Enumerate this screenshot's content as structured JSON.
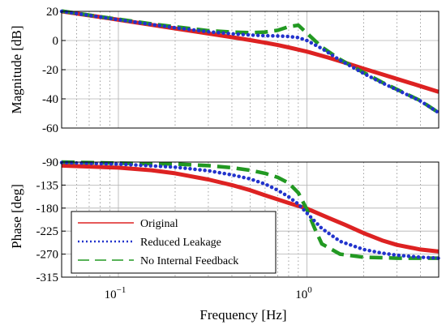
{
  "chart_data": [
    {
      "type": "line",
      "panel": "magnitude",
      "ylabel": "Magnitude [dB]",
      "xlim": [
        0.05,
        5
      ],
      "xscale": "log",
      "ylim": [
        -60,
        20
      ],
      "yticks": [
        20,
        0,
        -20,
        -40,
        -60
      ],
      "ytick_labels": [
        "20",
        "0",
        "-20",
        "-40",
        "-60"
      ],
      "grid": true,
      "series": [
        {
          "name": "Original",
          "color": "#dd2222",
          "style": "solid",
          "x": [
            0.05,
            0.08,
            0.1,
            0.15,
            0.2,
            0.3,
            0.4,
            0.5,
            0.6,
            0.7,
            0.8,
            1.0,
            1.3,
            1.6,
            2.0,
            2.5,
            3.0,
            4.0,
            5.0
          ],
          "y": [
            20.0,
            16.1,
            14.2,
            10.7,
            8.3,
            4.8,
            2.3,
            0.3,
            -1.5,
            -3.1,
            -4.7,
            -7.6,
            -11.7,
            -15.3,
            -19.3,
            -23.1,
            -26.3,
            -31.3,
            -35.2
          ]
        },
        {
          "name": "Reduced Leakage",
          "color": "#2233cc",
          "style": "dotted",
          "x": [
            0.05,
            0.08,
            0.1,
            0.15,
            0.2,
            0.3,
            0.4,
            0.5,
            0.6,
            0.7,
            0.8,
            0.9,
            1.0,
            1.2,
            1.5,
            2.0,
            2.5,
            3.0,
            4.0,
            5.0
          ],
          "y": [
            20.0,
            16.1,
            14.3,
            11.0,
            8.8,
            6.0,
            4.6,
            3.8,
            3.3,
            3.1,
            2.8,
            2.0,
            0.0,
            -5.5,
            -13.5,
            -22.6,
            -29.0,
            -33.8,
            -41.5,
            -49.5
          ]
        },
        {
          "name": "No Internal Feedback",
          "color": "#229922",
          "style": "dashed",
          "x": [
            0.05,
            0.08,
            0.1,
            0.15,
            0.2,
            0.3,
            0.4,
            0.5,
            0.6,
            0.7,
            0.8,
            0.9,
            1.0,
            1.2,
            1.5,
            2.0,
            2.5,
            3.0,
            4.0,
            5.0
          ],
          "y": [
            20.2,
            16.3,
            14.6,
            11.4,
            9.4,
            6.8,
            5.8,
            5.4,
            5.8,
            7.0,
            9.5,
            10.5,
            5.0,
            -4.5,
            -13.0,
            -22.0,
            -28.6,
            -33.5,
            -41.3,
            -49.5
          ]
        }
      ]
    },
    {
      "type": "line",
      "panel": "phase",
      "xlabel": "Frequency [Hz]",
      "ylabel": "Phase [deg]",
      "xlim": [
        0.05,
        5
      ],
      "xscale": "log",
      "xticks": [
        0.1,
        1.0
      ],
      "xtick_labels": [
        {
          "base": "10",
          "exp": "−1"
        },
        {
          "base": "10",
          "exp": "0"
        }
      ],
      "ylim": [
        -315,
        -90
      ],
      "yticks": [
        -90,
        -135,
        -180,
        -225,
        -270,
        -315
      ],
      "ytick_labels": [
        "-90",
        "-135",
        "-180",
        "-225",
        "-270",
        "-315"
      ],
      "grid": true,
      "legend_position": "lower-left",
      "series": [
        {
          "name": "Original",
          "color": "#dd2222",
          "style": "solid",
          "x": [
            0.05,
            0.1,
            0.15,
            0.2,
            0.3,
            0.4,
            0.5,
            0.6,
            0.8,
            1.0,
            1.3,
            1.6,
            2.0,
            2.5,
            3.0,
            4.0,
            5.0
          ],
          "y": [
            -97,
            -101,
            -106,
            -112,
            -124,
            -135,
            -145,
            -155,
            -170,
            -181,
            -199,
            -213,
            -229,
            -243,
            -252,
            -261,
            -265
          ]
        },
        {
          "name": "Reduced Leakage",
          "color": "#2233cc",
          "style": "dotted",
          "x": [
            0.05,
            0.1,
            0.2,
            0.3,
            0.4,
            0.5,
            0.6,
            0.7,
            0.8,
            0.9,
            1.0,
            1.2,
            1.5,
            2.0,
            2.5,
            3.0,
            4.0,
            5.0
          ],
          "y": [
            -91,
            -94,
            -100,
            -107,
            -115,
            -123,
            -133,
            -145,
            -158,
            -172,
            -190,
            -220,
            -245,
            -261,
            -268,
            -272,
            -276,
            -278
          ]
        },
        {
          "name": "No Internal Feedback",
          "color": "#229922",
          "style": "dashed",
          "x": [
            0.05,
            0.1,
            0.2,
            0.3,
            0.4,
            0.5,
            0.6,
            0.7,
            0.8,
            0.9,
            1.0,
            1.1,
            1.2,
            1.5,
            2.0,
            2.5,
            3.0,
            4.0,
            5.0
          ],
          "y": [
            -90,
            -92,
            -94,
            -97,
            -101,
            -106,
            -112,
            -120,
            -131,
            -150,
            -183,
            -220,
            -250,
            -270,
            -276,
            -277,
            -278,
            -278,
            -278
          ]
        }
      ]
    }
  ]
}
